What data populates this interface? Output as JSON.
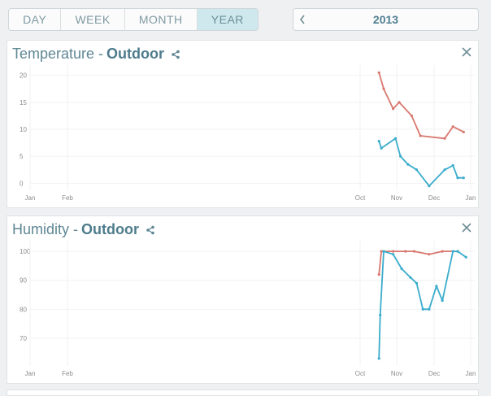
{
  "period_tabs": {
    "items": [
      "DAY",
      "WEEK",
      "MONTH",
      "YEAR"
    ],
    "active_index": 3
  },
  "year_nav": {
    "prev_icon": "chevron-left-icon",
    "year": "2013"
  },
  "panels": [
    {
      "title": "Temperature -",
      "location": "Outdoor",
      "share_icon": "share-icon",
      "close_icon": "close-icon",
      "chart_data": {
        "type": "line",
        "x_ticks": [
          "Jan",
          "Feb",
          "Oct",
          "Nov",
          "Dec",
          "Jan"
        ],
        "y_ticks": [
          0,
          5,
          10,
          15,
          20
        ],
        "ylim": [
          -1,
          21
        ],
        "series": [
          {
            "color": "#d9786f",
            "x": [
              "2013-10-17",
              "2013-10-21",
              "2013-10-29",
              "2013-11-03",
              "2013-11-13",
              "2013-11-20",
              "2013-12-10",
              "2013-12-17",
              "2013-12-26"
            ],
            "values": [
              20.5,
              17.5,
              13.8,
              15.0,
              12.5,
              8.8,
              8.3,
              10.5,
              9.5
            ]
          },
          {
            "color": "#3aaccc",
            "x": [
              "2013-10-17",
              "2013-10-19",
              "2013-10-31",
              "2013-11-04",
              "2013-11-10",
              "2013-11-17",
              "2013-11-27",
              "2013-12-10",
              "2013-12-17",
              "2013-12-21",
              "2013-12-26"
            ],
            "values": [
              7.8,
              6.5,
              8.3,
              5.0,
              3.5,
              2.5,
              -0.5,
              2.5,
              3.3,
              1.0,
              1.0
            ]
          }
        ],
        "grid": true
      }
    },
    {
      "title": "Humidity -",
      "location": "Outdoor",
      "share_icon": "share-icon",
      "close_icon": "close-icon",
      "chart_data": {
        "type": "line",
        "x_ticks": [
          "Jan",
          "Feb",
          "Oct",
          "Nov",
          "Dec",
          "Jan"
        ],
        "y_ticks": [
          70,
          80,
          90,
          100
        ],
        "ylim": [
          61,
          102
        ],
        "series": [
          {
            "color": "#d9786f",
            "x": [
              "2013-10-17",
              "2013-10-19",
              "2013-10-29",
              "2013-11-08",
              "2013-11-15",
              "2013-11-27",
              "2013-12-08",
              "2013-12-21"
            ],
            "values": [
              92,
              100,
              100,
              100,
              100,
              99,
              100,
              100
            ]
          },
          {
            "color": "#3aaccc",
            "x": [
              "2013-10-17",
              "2013-10-18",
              "2013-10-21",
              "2013-10-29",
              "2013-11-05",
              "2013-11-12",
              "2013-11-17",
              "2013-11-22",
              "2013-11-27",
              "2013-12-03",
              "2013-12-08",
              "2013-12-17",
              "2013-12-21",
              "2013-12-28"
            ],
            "values": [
              63,
              78,
              100,
              99,
              94,
              91,
              89,
              80,
              80,
              88,
              83,
              100,
              100,
              98
            ]
          }
        ],
        "grid": true
      }
    }
  ]
}
